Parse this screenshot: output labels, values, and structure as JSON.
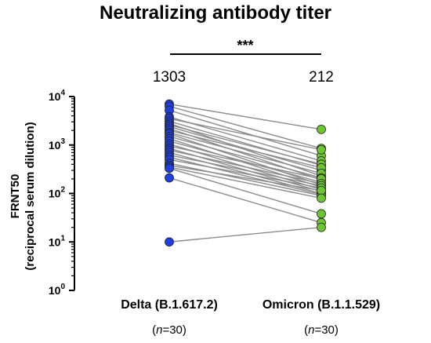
{
  "chart_data": {
    "type": "scatter",
    "title": "Neutralizing antibody titer",
    "ylabel_line1": "FRNT50",
    "ylabel_line2": "(reciprocal serum dilution)",
    "yscale": "log10",
    "ylim": [
      1,
      10000
    ],
    "yticks": [
      {
        "base": "10",
        "exp": "0"
      },
      {
        "base": "10",
        "exp": "1"
      },
      {
        "base": "10",
        "exp": "2"
      },
      {
        "base": "10",
        "exp": "3"
      },
      {
        "base": "10",
        "exp": "4"
      }
    ],
    "categories": [
      {
        "label": "Delta (B.1.617.2)",
        "n_prefix": "(",
        "n_italic": "n",
        "n_suffix": "=30)",
        "gmt": "1303",
        "color": "#1f3fe0"
      },
      {
        "label": "Omicron (B.1.1.529)",
        "n_prefix": "(",
        "n_italic": "n",
        "n_suffix": "=30)",
        "gmt": "212",
        "color": "#6cc531"
      }
    ],
    "significance": "***",
    "paired": true,
    "line_color": "#8c8c8c",
    "pairs": [
      [
        7000,
        2100
      ],
      [
        6300,
        850
      ],
      [
        5200,
        600
      ],
      [
        3800,
        470
      ],
      [
        3500,
        800
      ],
      [
        3100,
        380
      ],
      [
        2800,
        230
      ],
      [
        2600,
        400
      ],
      [
        2400,
        300
      ],
      [
        2200,
        190
      ],
      [
        2000,
        340
      ],
      [
        1800,
        260
      ],
      [
        1700,
        150
      ],
      [
        1500,
        210
      ],
      [
        1350,
        135
      ],
      [
        1200,
        170
      ],
      [
        1050,
        120
      ],
      [
        950,
        200
      ],
      [
        850,
        110
      ],
      [
        780,
        160
      ],
      [
        700,
        100
      ],
      [
        620,
        145
      ],
      [
        560,
        95
      ],
      [
        500,
        130
      ],
      [
        420,
        90
      ],
      [
        380,
        115
      ],
      [
        350,
        80
      ],
      [
        330,
        38
      ],
      [
        210,
        25
      ],
      [
        10,
        20
      ]
    ]
  }
}
